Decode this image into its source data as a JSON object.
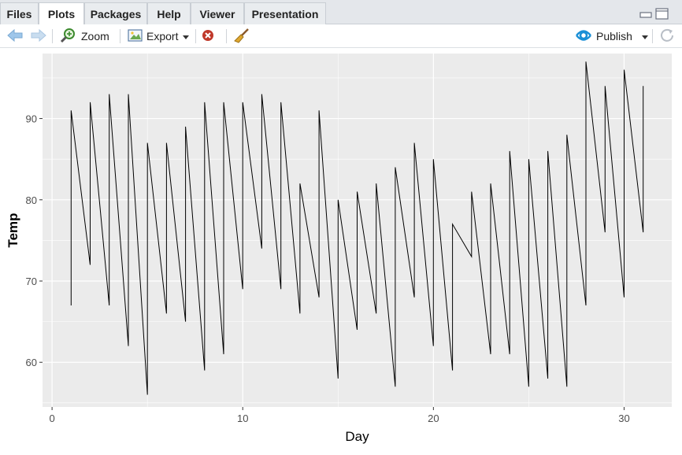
{
  "tabs": [
    "Files",
    "Plots",
    "Packages",
    "Help",
    "Viewer",
    "Presentation"
  ],
  "active_tab": "Plots",
  "toolbar": {
    "zoom_label": "Zoom",
    "export_label": "Export",
    "publish_label": "Publish"
  },
  "icons": {
    "back": "arrow-left-icon",
    "forward": "arrow-right-icon",
    "zoom": "magnifier-icon",
    "export": "export-image-icon",
    "remove": "remove-plot-icon",
    "clear": "broom-icon",
    "publish": "publish-icon",
    "refresh": "refresh-icon",
    "minimize": "minimize-icon",
    "maximize": "maximize-icon"
  },
  "colors": {
    "panel_bg": "#ebebeb",
    "grid": "#ffffff",
    "line": "#000000",
    "publish_blue": "#1a8fd6"
  },
  "chart_data": {
    "type": "line",
    "title": "",
    "xlabel": "Day",
    "ylabel": "Temp",
    "xlim": [
      -0.5,
      32.5
    ],
    "ylim": [
      54.5,
      98
    ],
    "x_ticks": [
      0,
      10,
      20,
      30
    ],
    "y_ticks": [
      60,
      70,
      80,
      90
    ],
    "grid": true,
    "legend": "none",
    "series": [
      {
        "x": [
          1,
          1,
          2,
          2,
          3,
          3,
          4,
          4,
          5,
          5,
          6,
          6,
          7,
          7,
          8,
          8,
          9,
          9,
          10,
          10,
          11,
          11,
          12,
          12,
          13,
          13,
          14,
          14,
          15,
          15,
          16,
          16,
          17,
          17,
          18,
          18,
          19,
          19,
          20,
          20,
          21,
          21,
          22,
          22,
          23,
          23,
          24,
          24,
          25,
          25,
          26,
          26,
          27,
          27,
          28,
          28,
          29,
          29,
          30,
          30,
          31,
          31
        ],
        "y": [
          67,
          91,
          72,
          92,
          67,
          93,
          62,
          93,
          56,
          87,
          66,
          87,
          65,
          89,
          59,
          92,
          61,
          92,
          69,
          92,
          74,
          93,
          69,
          92,
          66,
          82,
          68,
          91,
          58,
          80,
          64,
          81,
          66,
          82,
          57,
          84,
          68,
          87,
          62,
          85,
          59,
          77,
          73,
          81,
          61,
          82,
          61,
          86,
          57,
          85,
          58,
          86,
          57,
          88,
          67,
          97,
          76,
          94,
          68,
          96,
          76,
          94
        ]
      }
    ]
  }
}
